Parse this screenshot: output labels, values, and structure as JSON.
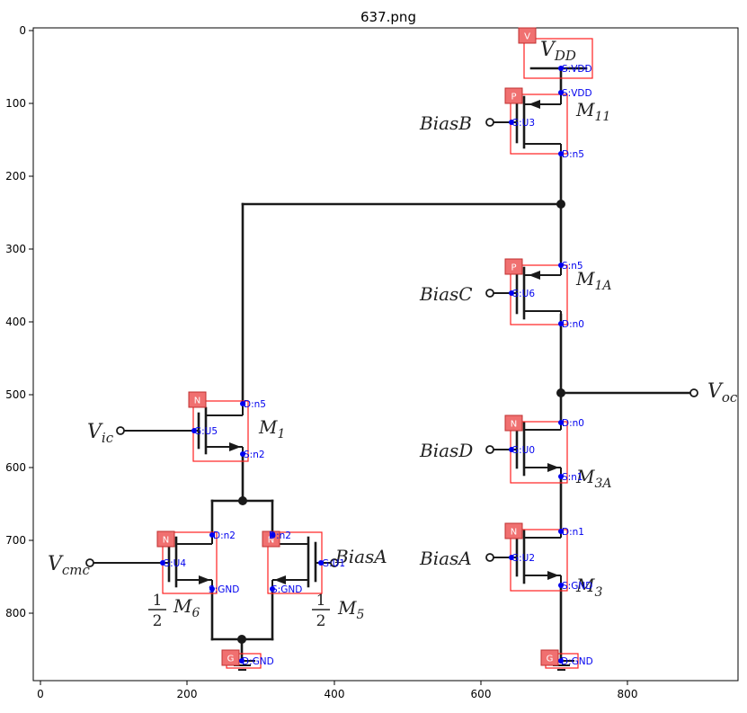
{
  "title": "637.png",
  "axes": {
    "x_ticks": [
      "0",
      "200",
      "400",
      "600",
      "800"
    ],
    "y_ticks": [
      "0",
      "100",
      "200",
      "300",
      "400",
      "500",
      "600",
      "700",
      "800"
    ]
  },
  "symbols": {
    "vdd_main": "V",
    "vdd_sub": "DD",
    "biasB": "BiasB",
    "biasC": "BiasC",
    "biasD": "BiasD",
    "biasA_right": "BiasA",
    "biasA_left": "BiasA",
    "m11_main": "M",
    "m11_sub": "11",
    "m1a_main": "M",
    "m1a_sub": "1A",
    "m3a_main": "M",
    "m3a_sub": "3A",
    "m3_main": "M",
    "m3_sub": "3",
    "m1_main": "M",
    "m1_sub": "1",
    "m6_main": "M",
    "m6_sub": "6",
    "m5_main": "M",
    "m5_sub": "5",
    "vic_main": "V",
    "vic_sub": "ic",
    "vcmc_main": "V",
    "vcmc_sub": "cmc",
    "voc_main": "V",
    "voc_sub": "oc",
    "half_num": "1",
    "half_den": "2"
  },
  "tags": {
    "vdd": "V",
    "m11": "P",
    "m1a": "P",
    "m3a": "N",
    "m3": "N",
    "m1": "N",
    "m6": "N",
    "m5": "N",
    "gnd_left": "G",
    "gnd_right": "G"
  },
  "pins": {
    "vdd": "S:VDD",
    "m11_s": "S:VDD",
    "m11_g": "G:U3",
    "m11_d": "D:n5",
    "m1a_s": "S:n5",
    "m1a_g": "G:U6",
    "m1a_d": "D:n0",
    "m3a_d": "D:n0",
    "m3a_g": "G:U0",
    "m3a_s": "S:n1",
    "m3_d": "D:n1",
    "m3_g": "G:U2",
    "m3_s": "S:GND",
    "m1_d": "D:n5",
    "m1_g": "G:U5",
    "m1_s": "S:n2",
    "m6_d": "D:n2",
    "m6_g": "G:U4",
    "m6_s": "S:GND",
    "m5_d": "D:n2",
    "m5_g": "G:U1",
    "m5_s": "S:GND",
    "gnd_left": "D:GND",
    "gnd_right": "D:GND"
  }
}
